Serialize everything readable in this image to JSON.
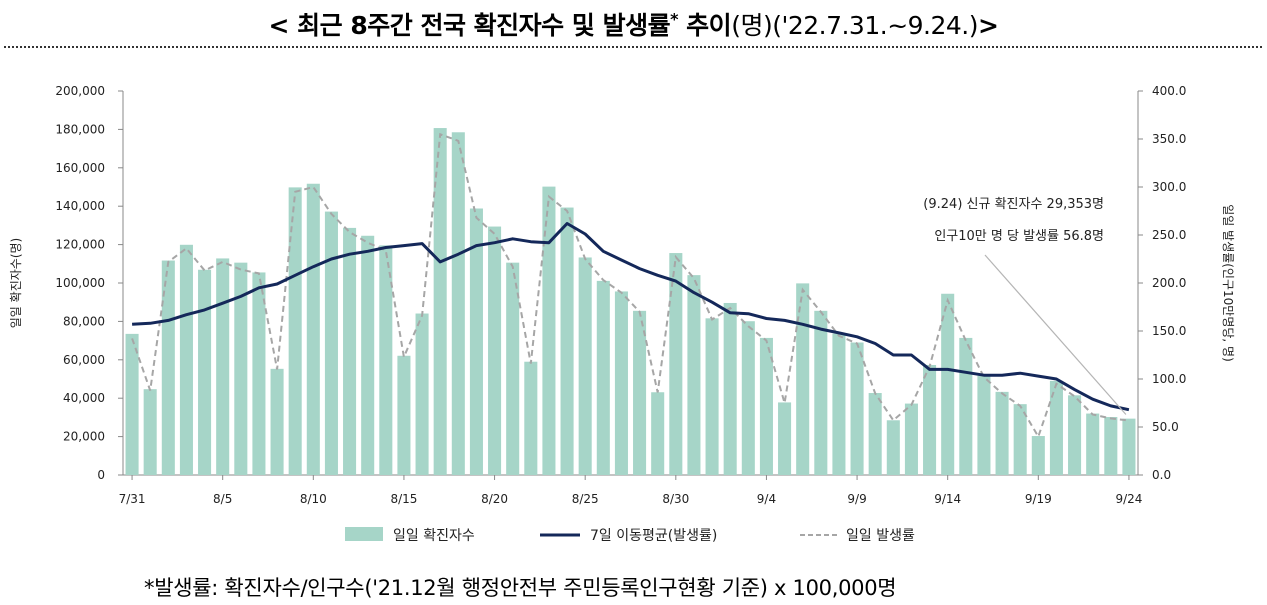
{
  "title": {
    "bold_text": "< 최근 8주간 전국 확진자수 및 발생률",
    "sup": "*",
    "bold_text2": " 추이",
    "light_text": "(명)('22.7.31.~9.24.)",
    "close": ">"
  },
  "footnote": "*발생률: 확진자수/인구수('21.12월 행정안전부 주민등록인구현황 기준) x 100,000명",
  "colors": {
    "bar": "#a6d5c8",
    "avg_line": "#14285a",
    "daily_line": "#a6a6a6",
    "axis": "#888888"
  },
  "chart_data": {
    "type": "bar",
    "title": "",
    "left_axis": {
      "label": "일일 확진자수(명)",
      "min": 0,
      "max": 200000,
      "step": 20000,
      "tick_labels": [
        "0",
        "20,000",
        "40,000",
        "60,000",
        "80,000",
        "100,000",
        "120,000",
        "140,000",
        "160,000",
        "180,000",
        "200,000"
      ]
    },
    "right_axis": {
      "label": "일일 발생률(인구10만명당, 명)",
      "min": 0,
      "max": 400,
      "step": 50,
      "tick_labels": [
        "0.0",
        "50.0",
        "100.0",
        "150.0",
        "200.0",
        "250.0",
        "300.0",
        "350.0",
        "400.0"
      ]
    },
    "x_tick_labels": [
      {
        "index": 0,
        "label": "7/31"
      },
      {
        "index": 5,
        "label": "8/5"
      },
      {
        "index": 10,
        "label": "8/10"
      },
      {
        "index": 15,
        "label": "8/15"
      },
      {
        "index": 20,
        "label": "8/20"
      },
      {
        "index": 25,
        "label": "8/25"
      },
      {
        "index": 30,
        "label": "8/30"
      },
      {
        "index": 35,
        "label": "9/4"
      },
      {
        "index": 40,
        "label": "9/9"
      },
      {
        "index": 45,
        "label": "9/14"
      },
      {
        "index": 50,
        "label": "9/19"
      },
      {
        "index": 55,
        "label": "9/24"
      }
    ],
    "series": [
      {
        "name": "일일 확진자수",
        "type": "bar",
        "axis": "left",
        "values": [
          73500,
          44700,
          111700,
          119900,
          106900,
          112800,
          110600,
          105500,
          55300,
          149800,
          151700,
          137200,
          128700,
          124600,
          119600,
          62100,
          84100,
          180700,
          178500,
          138800,
          129400,
          110600,
          59000,
          150200,
          139300,
          113300,
          101100,
          95600,
          85500,
          43100,
          115600,
          104100,
          81600,
          89600,
          80100,
          71400,
          37800,
          99800,
          85500,
          73600,
          69000,
          42700,
          28500,
          37200,
          57300,
          94400,
          71400,
          51700,
          43300,
          36900,
          20300,
          49000,
          41500,
          32000,
          30200,
          29353
        ]
      },
      {
        "name": "7일 이동평균(발생률)",
        "type": "line",
        "axis": "right",
        "values": [
          157,
          158,
          161,
          167,
          172,
          179,
          186,
          195,
          199,
          208,
          217,
          225,
          230,
          233,
          237,
          239,
          241,
          222,
          230,
          239,
          242,
          246,
          243,
          242,
          262,
          251,
          233,
          224,
          215,
          208,
          202,
          190,
          180,
          169,
          168,
          163,
          161,
          157,
          152,
          148,
          144,
          137,
          125,
          125,
          110,
          110,
          107,
          104,
          104,
          106,
          103,
          100,
          89,
          79,
          72,
          68
        ]
      },
      {
        "name": "일일 발생률",
        "type": "line",
        "axis": "right",
        "dashed": true,
        "values": [
          142.3,
          88,
          222,
          236,
          213,
          222,
          214,
          210,
          110,
          295,
          300,
          272,
          253,
          242,
          234,
          123,
          166,
          355,
          348,
          268,
          251,
          217,
          116,
          290,
          275,
          225,
          203,
          190,
          170,
          86,
          227,
          205,
          162,
          174,
          155,
          140,
          75,
          193,
          170,
          145,
          137,
          85,
          57,
          73,
          113,
          182,
          140,
          102,
          85,
          72,
          40,
          95,
          82,
          63,
          59,
          56.8
        ]
      }
    ],
    "annotation": {
      "line1": "(9.24) 신규 확진자수 29,353명",
      "line2": "인구10만 명 당 발생률 56.8명"
    }
  }
}
